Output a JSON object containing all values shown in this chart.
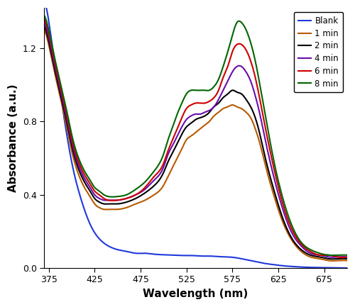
{
  "title": "",
  "xlabel": "Wavelength (nm)",
  "ylabel": "Absorbance (a.u.)",
  "xlim": [
    370,
    700
  ],
  "ylim": [
    0,
    1.42
  ],
  "yticks": [
    0,
    0.4,
    0.8,
    1.2
  ],
  "xticks": [
    375,
    425,
    475,
    525,
    575,
    625,
    675
  ],
  "background_color": "#ffffff",
  "legend_labels": [
    "Blank",
    "1 min",
    "2 min",
    "4 min",
    "6 min",
    "8 min"
  ],
  "colors": [
    "#1f3adb",
    "#b85a00",
    "#000000",
    "#6a0dad",
    "#cc0000",
    "#006600"
  ],
  "linewidth": 1.5,
  "series": {
    "blank": {
      "wavelengths": [
        370,
        375,
        380,
        385,
        390,
        395,
        400,
        410,
        420,
        430,
        440,
        450,
        460,
        470,
        480,
        490,
        500,
        510,
        520,
        530,
        540,
        550,
        560,
        570,
        580,
        590,
        600,
        610,
        620,
        630,
        640,
        650,
        660,
        670,
        680,
        690,
        700
      ],
      "absorbance": [
        1.45,
        1.35,
        1.18,
        1.05,
        0.88,
        0.72,
        0.58,
        0.38,
        0.24,
        0.16,
        0.12,
        0.1,
        0.09,
        0.08,
        0.08,
        0.075,
        0.072,
        0.07,
        0.068,
        0.068,
        0.065,
        0.065,
        0.062,
        0.06,
        0.055,
        0.045,
        0.035,
        0.025,
        0.018,
        0.012,
        0.008,
        0.005,
        0.003,
        0.002,
        0.001,
        0.0,
        0.0
      ]
    },
    "1min": {
      "wavelengths": [
        370,
        375,
        380,
        385,
        390,
        395,
        400,
        410,
        415,
        420,
        425,
        430,
        435,
        440,
        450,
        460,
        470,
        480,
        490,
        500,
        505,
        510,
        515,
        520,
        525,
        530,
        535,
        540,
        545,
        550,
        555,
        560,
        565,
        570,
        575,
        580,
        585,
        590,
        595,
        600,
        605,
        610,
        620,
        630,
        640,
        650,
        660,
        670,
        680,
        690,
        700
      ],
      "absorbance": [
        1.3,
        1.22,
        1.1,
        0.99,
        0.88,
        0.76,
        0.64,
        0.48,
        0.43,
        0.39,
        0.35,
        0.33,
        0.32,
        0.32,
        0.32,
        0.33,
        0.35,
        0.37,
        0.4,
        0.45,
        0.5,
        0.55,
        0.6,
        0.65,
        0.7,
        0.72,
        0.74,
        0.76,
        0.78,
        0.8,
        0.83,
        0.85,
        0.87,
        0.88,
        0.89,
        0.88,
        0.87,
        0.85,
        0.82,
        0.76,
        0.68,
        0.58,
        0.4,
        0.25,
        0.15,
        0.09,
        0.06,
        0.05,
        0.04,
        0.04,
        0.04
      ]
    },
    "2min": {
      "wavelengths": [
        370,
        375,
        380,
        385,
        390,
        395,
        400,
        410,
        415,
        420,
        425,
        430,
        435,
        440,
        450,
        460,
        470,
        480,
        490,
        500,
        505,
        510,
        515,
        520,
        525,
        530,
        535,
        540,
        545,
        550,
        555,
        560,
        565,
        570,
        575,
        580,
        585,
        590,
        595,
        600,
        605,
        610,
        620,
        630,
        640,
        650,
        660,
        670,
        680,
        690,
        700
      ],
      "absorbance": [
        1.32,
        1.24,
        1.12,
        1.01,
        0.9,
        0.79,
        0.67,
        0.51,
        0.46,
        0.42,
        0.38,
        0.36,
        0.35,
        0.35,
        0.35,
        0.36,
        0.38,
        0.41,
        0.45,
        0.52,
        0.58,
        0.63,
        0.68,
        0.73,
        0.77,
        0.79,
        0.81,
        0.82,
        0.83,
        0.85,
        0.88,
        0.9,
        0.93,
        0.95,
        0.97,
        0.96,
        0.95,
        0.92,
        0.88,
        0.82,
        0.73,
        0.62,
        0.43,
        0.27,
        0.16,
        0.1,
        0.07,
        0.06,
        0.05,
        0.05,
        0.05
      ]
    },
    "4min": {
      "wavelengths": [
        370,
        375,
        380,
        385,
        390,
        395,
        400,
        410,
        415,
        420,
        425,
        430,
        435,
        440,
        450,
        460,
        470,
        480,
        490,
        500,
        505,
        510,
        515,
        520,
        525,
        530,
        535,
        540,
        545,
        550,
        555,
        560,
        565,
        570,
        575,
        580,
        585,
        590,
        595,
        600,
        605,
        610,
        620,
        630,
        640,
        650,
        660,
        670,
        680,
        690,
        700
      ],
      "absorbance": [
        1.34,
        1.26,
        1.14,
        1.03,
        0.92,
        0.81,
        0.69,
        0.53,
        0.48,
        0.44,
        0.4,
        0.38,
        0.37,
        0.37,
        0.37,
        0.38,
        0.4,
        0.43,
        0.48,
        0.55,
        0.62,
        0.67,
        0.72,
        0.77,
        0.81,
        0.83,
        0.84,
        0.84,
        0.85,
        0.86,
        0.88,
        0.92,
        0.97,
        1.02,
        1.07,
        1.1,
        1.1,
        1.07,
        1.02,
        0.94,
        0.84,
        0.72,
        0.5,
        0.32,
        0.19,
        0.12,
        0.08,
        0.07,
        0.06,
        0.06,
        0.06
      ]
    },
    "6min": {
      "wavelengths": [
        370,
        375,
        380,
        385,
        390,
        395,
        400,
        410,
        415,
        420,
        425,
        430,
        435,
        440,
        450,
        460,
        470,
        480,
        490,
        500,
        505,
        510,
        515,
        520,
        525,
        530,
        535,
        540,
        545,
        550,
        555,
        560,
        565,
        570,
        575,
        580,
        585,
        590,
        595,
        600,
        605,
        610,
        620,
        630,
        640,
        650,
        660,
        670,
        680,
        690,
        700
      ],
      "absorbance": [
        1.36,
        1.28,
        1.16,
        1.05,
        0.94,
        0.83,
        0.71,
        0.55,
        0.5,
        0.46,
        0.42,
        0.4,
        0.38,
        0.37,
        0.37,
        0.38,
        0.4,
        0.44,
        0.5,
        0.57,
        0.64,
        0.7,
        0.76,
        0.82,
        0.87,
        0.89,
        0.9,
        0.9,
        0.9,
        0.91,
        0.93,
        0.97,
        1.04,
        1.1,
        1.18,
        1.22,
        1.22,
        1.19,
        1.13,
        1.04,
        0.92,
        0.79,
        0.55,
        0.35,
        0.21,
        0.13,
        0.09,
        0.07,
        0.07,
        0.06,
        0.06
      ]
    },
    "8min": {
      "wavelengths": [
        370,
        375,
        380,
        385,
        390,
        395,
        400,
        410,
        415,
        420,
        425,
        430,
        435,
        440,
        450,
        460,
        470,
        480,
        490,
        500,
        505,
        510,
        515,
        520,
        525,
        530,
        535,
        540,
        545,
        550,
        555,
        560,
        565,
        570,
        575,
        580,
        585,
        590,
        595,
        600,
        605,
        610,
        620,
        630,
        640,
        650,
        660,
        670,
        680,
        690,
        700
      ],
      "absorbance": [
        1.38,
        1.3,
        1.18,
        1.07,
        0.96,
        0.85,
        0.73,
        0.57,
        0.52,
        0.48,
        0.44,
        0.42,
        0.4,
        0.39,
        0.39,
        0.4,
        0.43,
        0.47,
        0.53,
        0.62,
        0.7,
        0.77,
        0.84,
        0.9,
        0.95,
        0.97,
        0.97,
        0.97,
        0.97,
        0.97,
        0.99,
        1.03,
        1.1,
        1.18,
        1.27,
        1.34,
        1.34,
        1.3,
        1.23,
        1.13,
        1.0,
        0.86,
        0.59,
        0.38,
        0.23,
        0.14,
        0.1,
        0.08,
        0.07,
        0.07,
        0.07
      ]
    }
  }
}
